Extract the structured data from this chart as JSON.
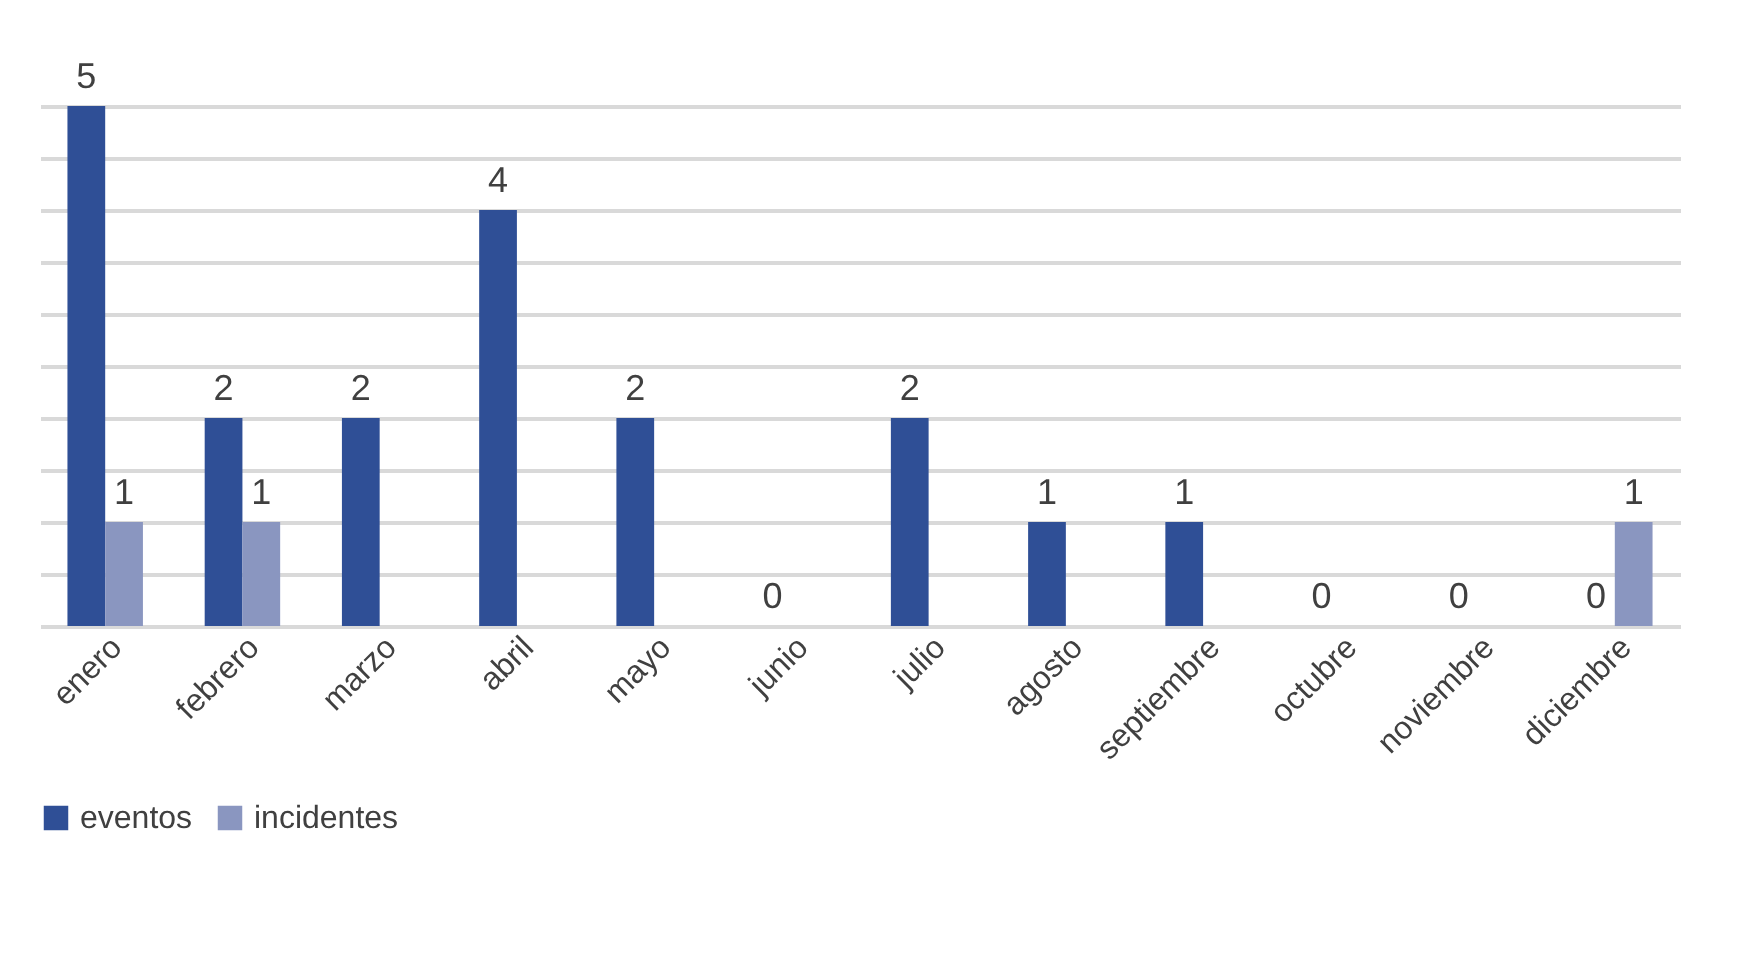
{
  "chart_data": {
    "type": "bar",
    "categories": [
      "enero",
      "febrero",
      "marzo",
      "abril",
      "mayo",
      "junio",
      "julio",
      "agosto",
      "septiembre",
      "octubre",
      "noviembre",
      "diciembre"
    ],
    "series": [
      {
        "name": "eventos",
        "color": "#2f4f96",
        "values": [
          5,
          2,
          2,
          4,
          2,
          0,
          2,
          1,
          1,
          0,
          0,
          0
        ]
      },
      {
        "name": "incidentes",
        "color": "#8a96c0",
        "values": [
          1,
          1,
          null,
          null,
          null,
          null,
          null,
          null,
          null,
          null,
          null,
          1
        ]
      }
    ],
    "ylim": [
      0,
      5
    ],
    "yticks": [
      {
        "value": 0,
        "label": null
      },
      {
        "value": 0.5,
        "label": null
      },
      {
        "value": 1,
        "label": null
      },
      {
        "value": 1.5,
        "label": null
      },
      {
        "value": 2,
        "label": null
      },
      {
        "value": 2.5,
        "label": null
      },
      {
        "value": 3,
        "label": null
      },
      {
        "value": 3.5,
        "label": null
      },
      {
        "value": 4,
        "label": null
      },
      {
        "value": 4.5,
        "label": null
      },
      {
        "value": 5,
        "label": null
      }
    ],
    "tick_labels": "x",
    "grid": "y",
    "data_labels": true,
    "legend": "bottom"
  }
}
